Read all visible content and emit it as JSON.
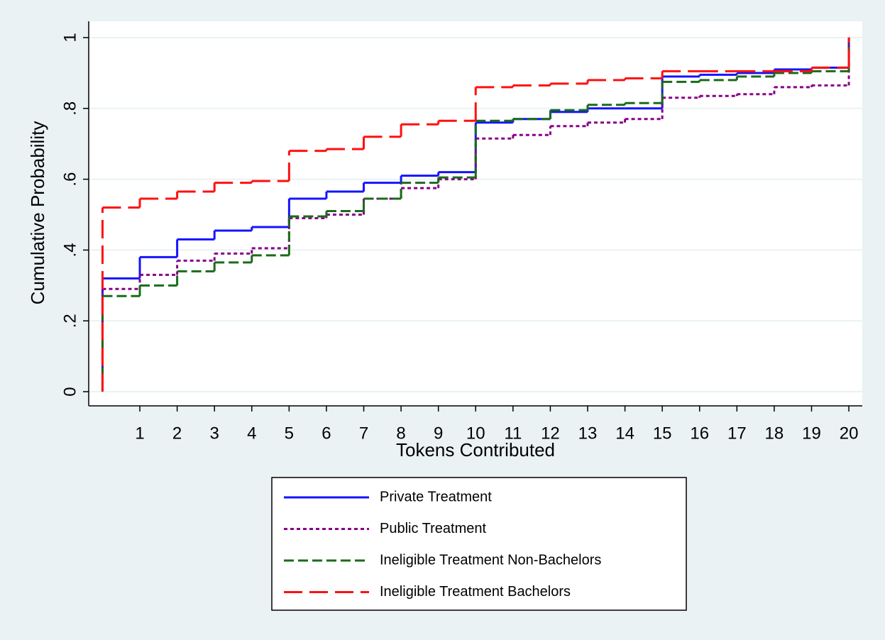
{
  "chart_data": {
    "type": "step",
    "x_label": "Tokens Contributed",
    "y_label": "Cumulative Probability",
    "x": [
      0,
      1,
      2,
      3,
      4,
      5,
      6,
      7,
      8,
      9,
      10,
      11,
      12,
      13,
      14,
      15,
      16,
      17,
      18,
      19,
      20
    ],
    "xlim": [
      -0.37,
      20.36
    ],
    "xticks": [
      1,
      2,
      3,
      4,
      5,
      6,
      7,
      8,
      9,
      10,
      11,
      12,
      13,
      14,
      15,
      16,
      17,
      18,
      19,
      20
    ],
    "ylim": [
      -0.04,
      1.046
    ],
    "yticks": [
      0,
      {
        "value": 0.2,
        "label": ".2"
      },
      {
        "value": 0.4,
        "label": ".4"
      },
      {
        "value": 0.6,
        "label": ".6"
      },
      {
        "value": 0.8,
        "label": ".8"
      },
      1
    ],
    "grid": true,
    "series": [
      {
        "name": "Private Treatment",
        "color": "#1414ff",
        "dash": "solid",
        "values": [
          0.32,
          0.38,
          0.43,
          0.455,
          0.465,
          0.545,
          0.565,
          0.59,
          0.61,
          0.62,
          0.76,
          0.77,
          0.79,
          0.8,
          0.8,
          0.89,
          0.895,
          0.9,
          0.91,
          0.915,
          1
        ]
      },
      {
        "name": "Public Treatment",
        "color": "#880088",
        "dash": "short",
        "values": [
          0.29,
          0.33,
          0.37,
          0.39,
          0.405,
          0.49,
          0.5,
          0.545,
          0.575,
          0.6,
          0.715,
          0.725,
          0.75,
          0.76,
          0.77,
          0.83,
          0.835,
          0.84,
          0.86,
          0.865,
          1
        ]
      },
      {
        "name": "Ineligible Treatment Non-Bachelors",
        "color": "#1a6b1a",
        "dash": "medium",
        "values": [
          0.27,
          0.3,
          0.34,
          0.365,
          0.385,
          0.495,
          0.51,
          0.545,
          0.59,
          0.605,
          0.765,
          0.77,
          0.795,
          0.81,
          0.815,
          0.875,
          0.88,
          0.89,
          0.9,
          0.905,
          1
        ]
      },
      {
        "name": "Ineligible Treatment Bachelors",
        "color": "#ff1010",
        "dash": "long",
        "values": [
          0.52,
          0.545,
          0.565,
          0.59,
          0.595,
          0.68,
          0.685,
          0.72,
          0.755,
          0.765,
          0.86,
          0.865,
          0.87,
          0.88,
          0.885,
          0.905,
          0.905,
          0.905,
          0.905,
          0.915,
          1
        ]
      }
    ]
  }
}
